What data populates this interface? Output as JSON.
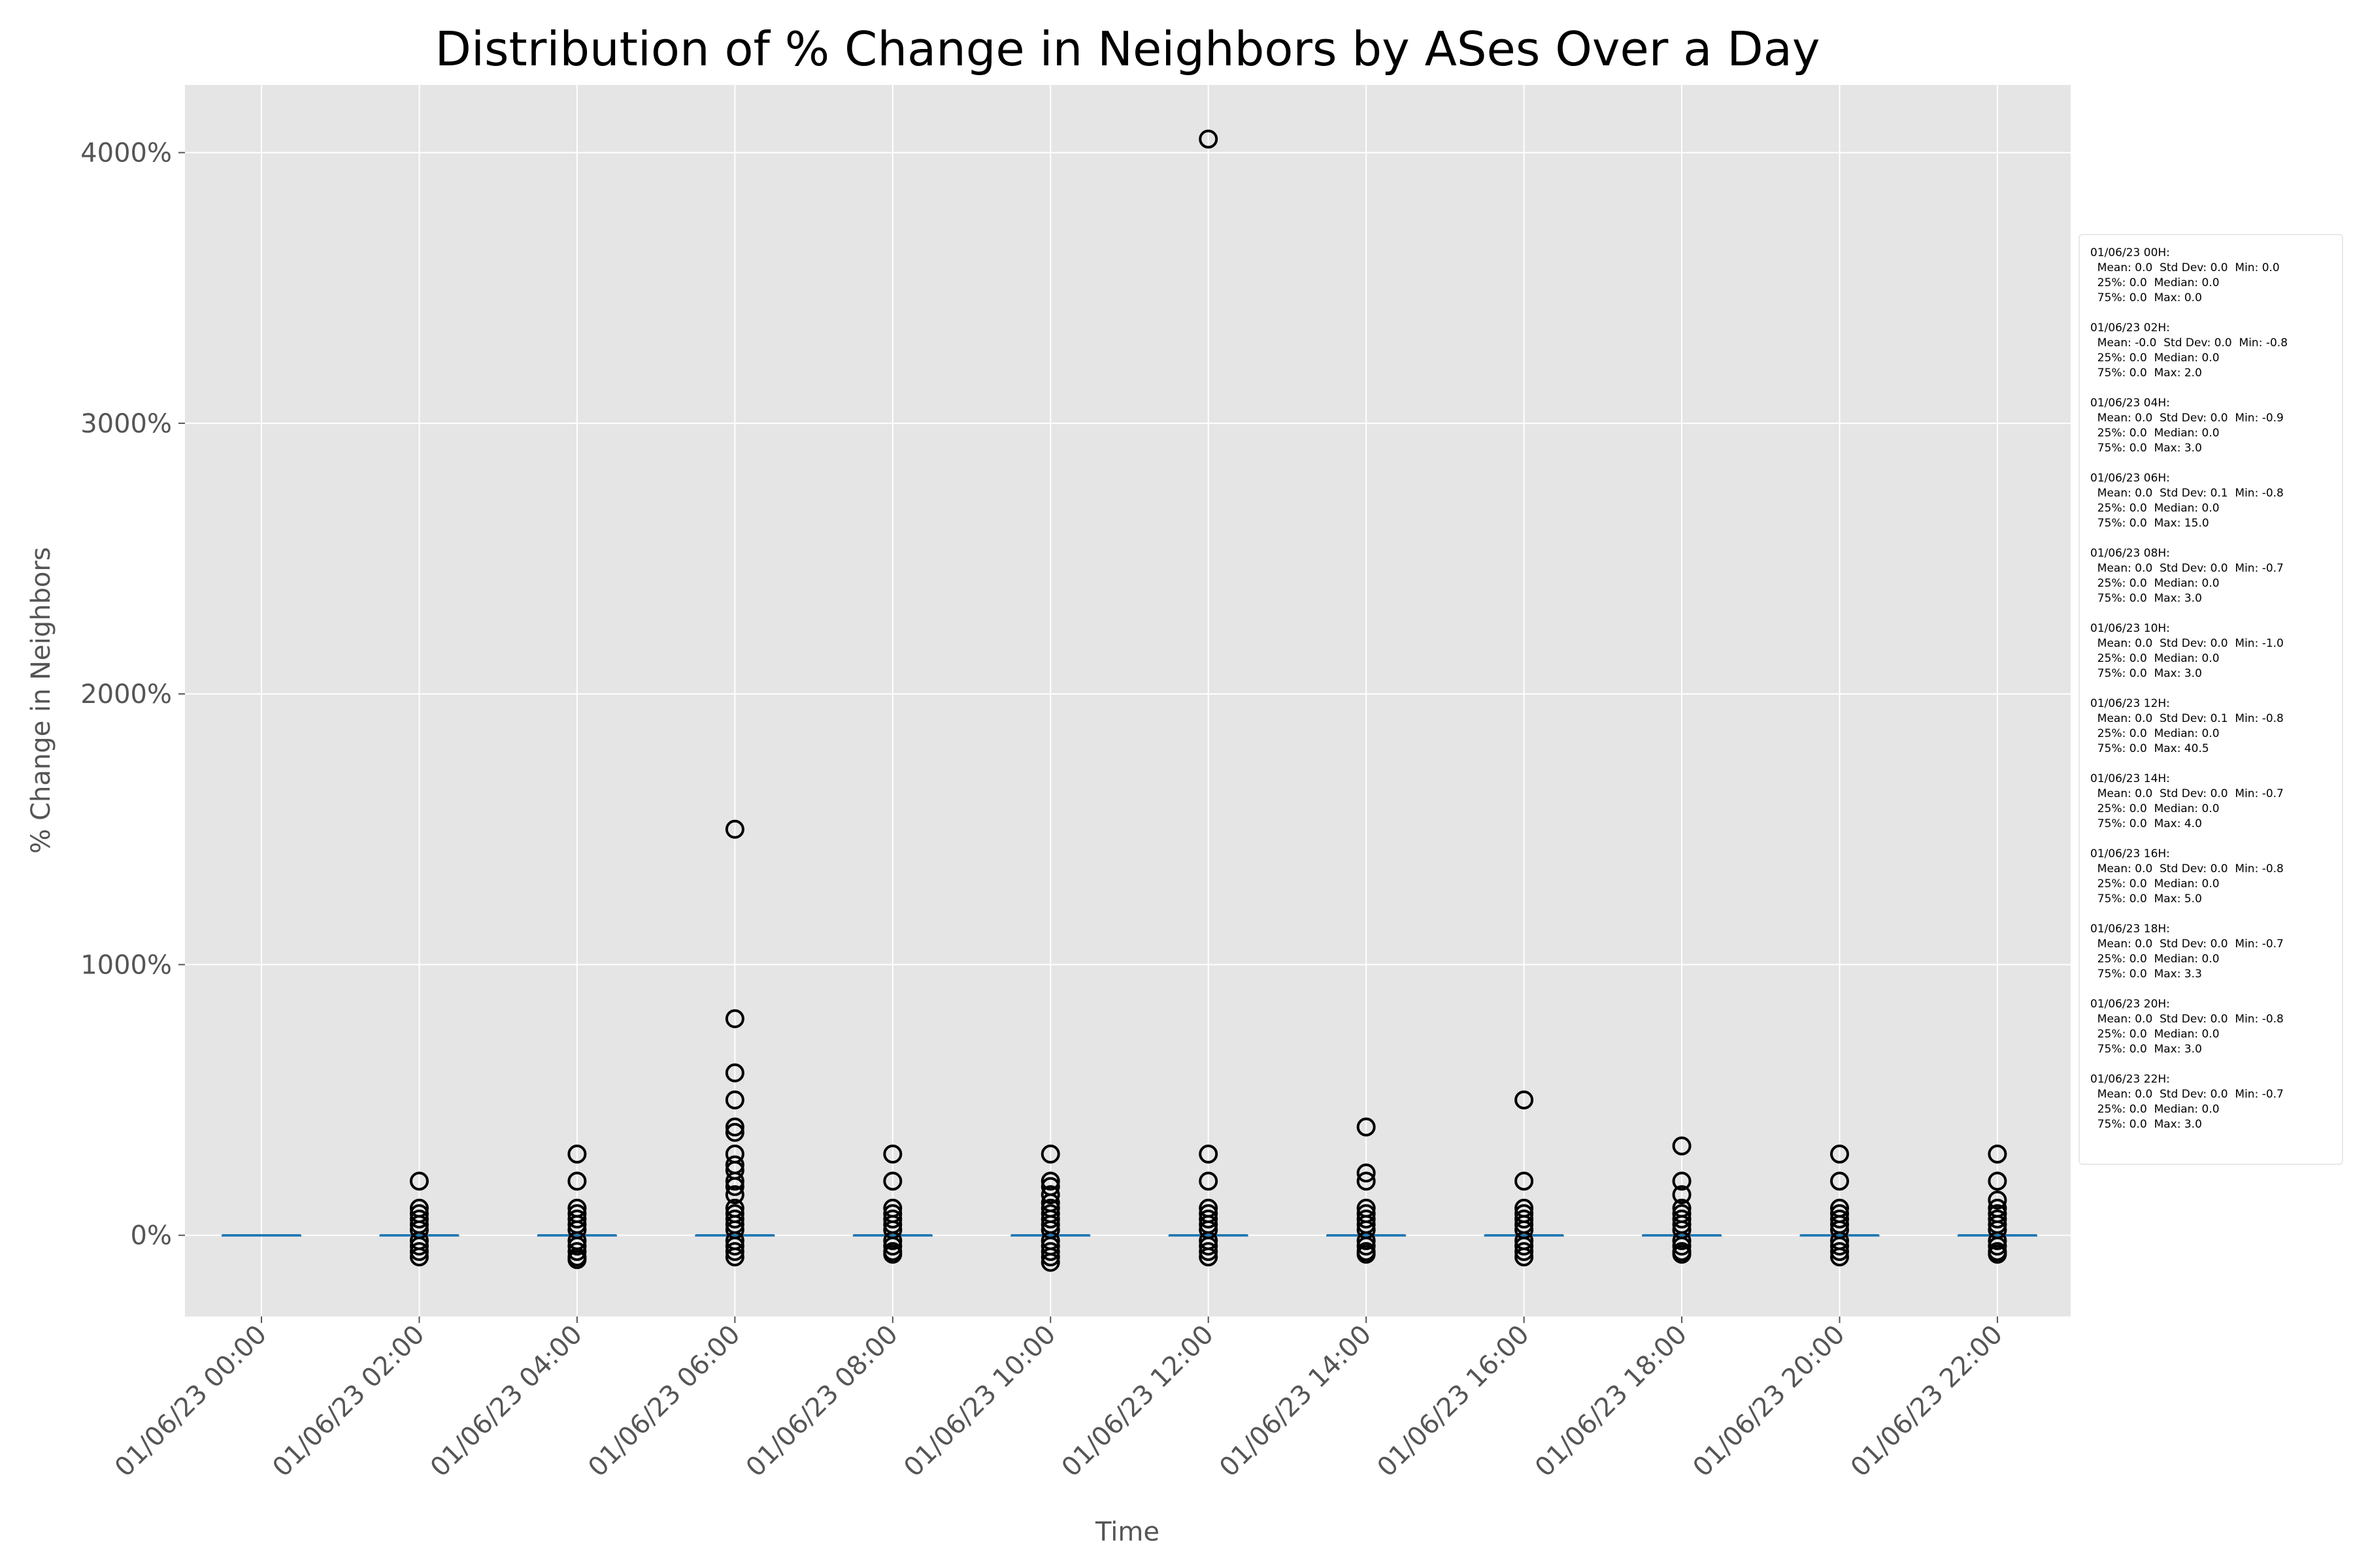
{
  "chart_data": {
    "type": "box",
    "title": "Distribution of % Change in Neighbors by ASes Over a Day",
    "xlabel": "Time",
    "ylabel": "% Change in Neighbors",
    "ylim": [
      -300,
      4250
    ],
    "yticks": [
      0,
      1000,
      2000,
      3000,
      4000
    ],
    "ytick_labels": [
      "0%",
      "1000%",
      "2000%",
      "3000%",
      "4000%"
    ],
    "grid": true,
    "background": "#e5e5e5",
    "median_color": "#1f77b4",
    "categories": [
      "01/06/23 00:00",
      "01/06/23 02:00",
      "01/06/23 04:00",
      "01/06/23 06:00",
      "01/06/23 08:00",
      "01/06/23 10:00",
      "01/06/23 12:00",
      "01/06/23 14:00",
      "01/06/23 16:00",
      "01/06/23 18:00",
      "01/06/23 20:00",
      "01/06/23 22:00"
    ],
    "boxes": [
      {
        "q1": 0,
        "median": 0,
        "q3": 0,
        "outliers": []
      },
      {
        "q1": 0,
        "median": 0,
        "q3": 0,
        "outliers": [
          200,
          100,
          80,
          60,
          40,
          20,
          -20,
          -40,
          -60,
          -80
        ]
      },
      {
        "q1": 0,
        "median": 0,
        "q3": 0,
        "outliers": [
          300,
          200,
          100,
          80,
          60,
          40,
          20,
          -20,
          -40,
          -60,
          -80,
          -90
        ]
      },
      {
        "q1": 0,
        "median": 0,
        "q3": 0,
        "outliers": [
          1500,
          800,
          600,
          500,
          400,
          380,
          300,
          260,
          240,
          200,
          180,
          150,
          100,
          80,
          60,
          40,
          20,
          -20,
          -40,
          -60,
          -80
        ]
      },
      {
        "q1": 0,
        "median": 0,
        "q3": 0,
        "outliers": [
          300,
          200,
          100,
          80,
          60,
          40,
          20,
          -20,
          -40,
          -60,
          -70
        ]
      },
      {
        "q1": 0,
        "median": 0,
        "q3": 0,
        "outliers": [
          300,
          200,
          180,
          150,
          120,
          100,
          80,
          60,
          40,
          20,
          -20,
          -40,
          -60,
          -80,
          -100
        ]
      },
      {
        "q1": 0,
        "median": 0,
        "q3": 0,
        "outliers": [
          4050,
          300,
          200,
          100,
          80,
          60,
          40,
          20,
          -20,
          -40,
          -60,
          -80
        ]
      },
      {
        "q1": 0,
        "median": 0,
        "q3": 0,
        "outliers": [
          400,
          230,
          200,
          100,
          80,
          60,
          40,
          20,
          -20,
          -40,
          -60,
          -70
        ]
      },
      {
        "q1": 0,
        "median": 0,
        "q3": 0,
        "outliers": [
          500,
          200,
          100,
          80,
          60,
          40,
          20,
          -20,
          -40,
          -60,
          -80
        ]
      },
      {
        "q1": 0,
        "median": 0,
        "q3": 0,
        "outliers": [
          330,
          200,
          150,
          100,
          80,
          60,
          40,
          20,
          -20,
          -40,
          -60,
          -70
        ]
      },
      {
        "q1": 0,
        "median": 0,
        "q3": 0,
        "outliers": [
          300,
          200,
          100,
          80,
          60,
          40,
          20,
          -20,
          -40,
          -60,
          -80
        ]
      },
      {
        "q1": 0,
        "median": 0,
        "q3": 0,
        "outliers": [
          300,
          200,
          130,
          100,
          80,
          60,
          40,
          20,
          -20,
          -40,
          -60,
          -70
        ]
      }
    ]
  },
  "stats_legend": [
    {
      "header": "01/06/23 00H:",
      "line1": "  Mean: 0.0  Std Dev: 0.0  Min: 0.0",
      "line2": "  25%: 0.0  Median: 0.0",
      "line3": "  75%: 0.0  Max: 0.0"
    },
    {
      "header": "01/06/23 02H:",
      "line1": "  Mean: -0.0  Std Dev: 0.0  Min: -0.8",
      "line2": "  25%: 0.0  Median: 0.0",
      "line3": "  75%: 0.0  Max: 2.0"
    },
    {
      "header": "01/06/23 04H:",
      "line1": "  Mean: 0.0  Std Dev: 0.0  Min: -0.9",
      "line2": "  25%: 0.0  Median: 0.0",
      "line3": "  75%: 0.0  Max: 3.0"
    },
    {
      "header": "01/06/23 06H:",
      "line1": "  Mean: 0.0  Std Dev: 0.1  Min: -0.8",
      "line2": "  25%: 0.0  Median: 0.0",
      "line3": "  75%: 0.0  Max: 15.0"
    },
    {
      "header": "01/06/23 08H:",
      "line1": "  Mean: 0.0  Std Dev: 0.0  Min: -0.7",
      "line2": "  25%: 0.0  Median: 0.0",
      "line3": "  75%: 0.0  Max: 3.0"
    },
    {
      "header": "01/06/23 10H:",
      "line1": "  Mean: 0.0  Std Dev: 0.0  Min: -1.0",
      "line2": "  25%: 0.0  Median: 0.0",
      "line3": "  75%: 0.0  Max: 3.0"
    },
    {
      "header": "01/06/23 12H:",
      "line1": "  Mean: 0.0  Std Dev: 0.1  Min: -0.8",
      "line2": "  25%: 0.0  Median: 0.0",
      "line3": "  75%: 0.0  Max: 40.5"
    },
    {
      "header": "01/06/23 14H:",
      "line1": "  Mean: 0.0  Std Dev: 0.0  Min: -0.7",
      "line2": "  25%: 0.0  Median: 0.0",
      "line3": "  75%: 0.0  Max: 4.0"
    },
    {
      "header": "01/06/23 16H:",
      "line1": "  Mean: 0.0  Std Dev: 0.0  Min: -0.8",
      "line2": "  25%: 0.0  Median: 0.0",
      "line3": "  75%: 0.0  Max: 5.0"
    },
    {
      "header": "01/06/23 18H:",
      "line1": "  Mean: 0.0  Std Dev: 0.0  Min: -0.7",
      "line2": "  25%: 0.0  Median: 0.0",
      "line3": "  75%: 0.0  Max: 3.3"
    },
    {
      "header": "01/06/23 20H:",
      "line1": "  Mean: 0.0  Std Dev: 0.0  Min: -0.8",
      "line2": "  25%: 0.0  Median: 0.0",
      "line3": "  75%: 0.0  Max: 3.0"
    },
    {
      "header": "01/06/23 22H:",
      "line1": "  Mean: 0.0  Std Dev: 0.0  Min: -0.7",
      "line2": "  25%: 0.0  Median: 0.0",
      "line3": "  75%: 0.0  Max: 3.0"
    }
  ]
}
